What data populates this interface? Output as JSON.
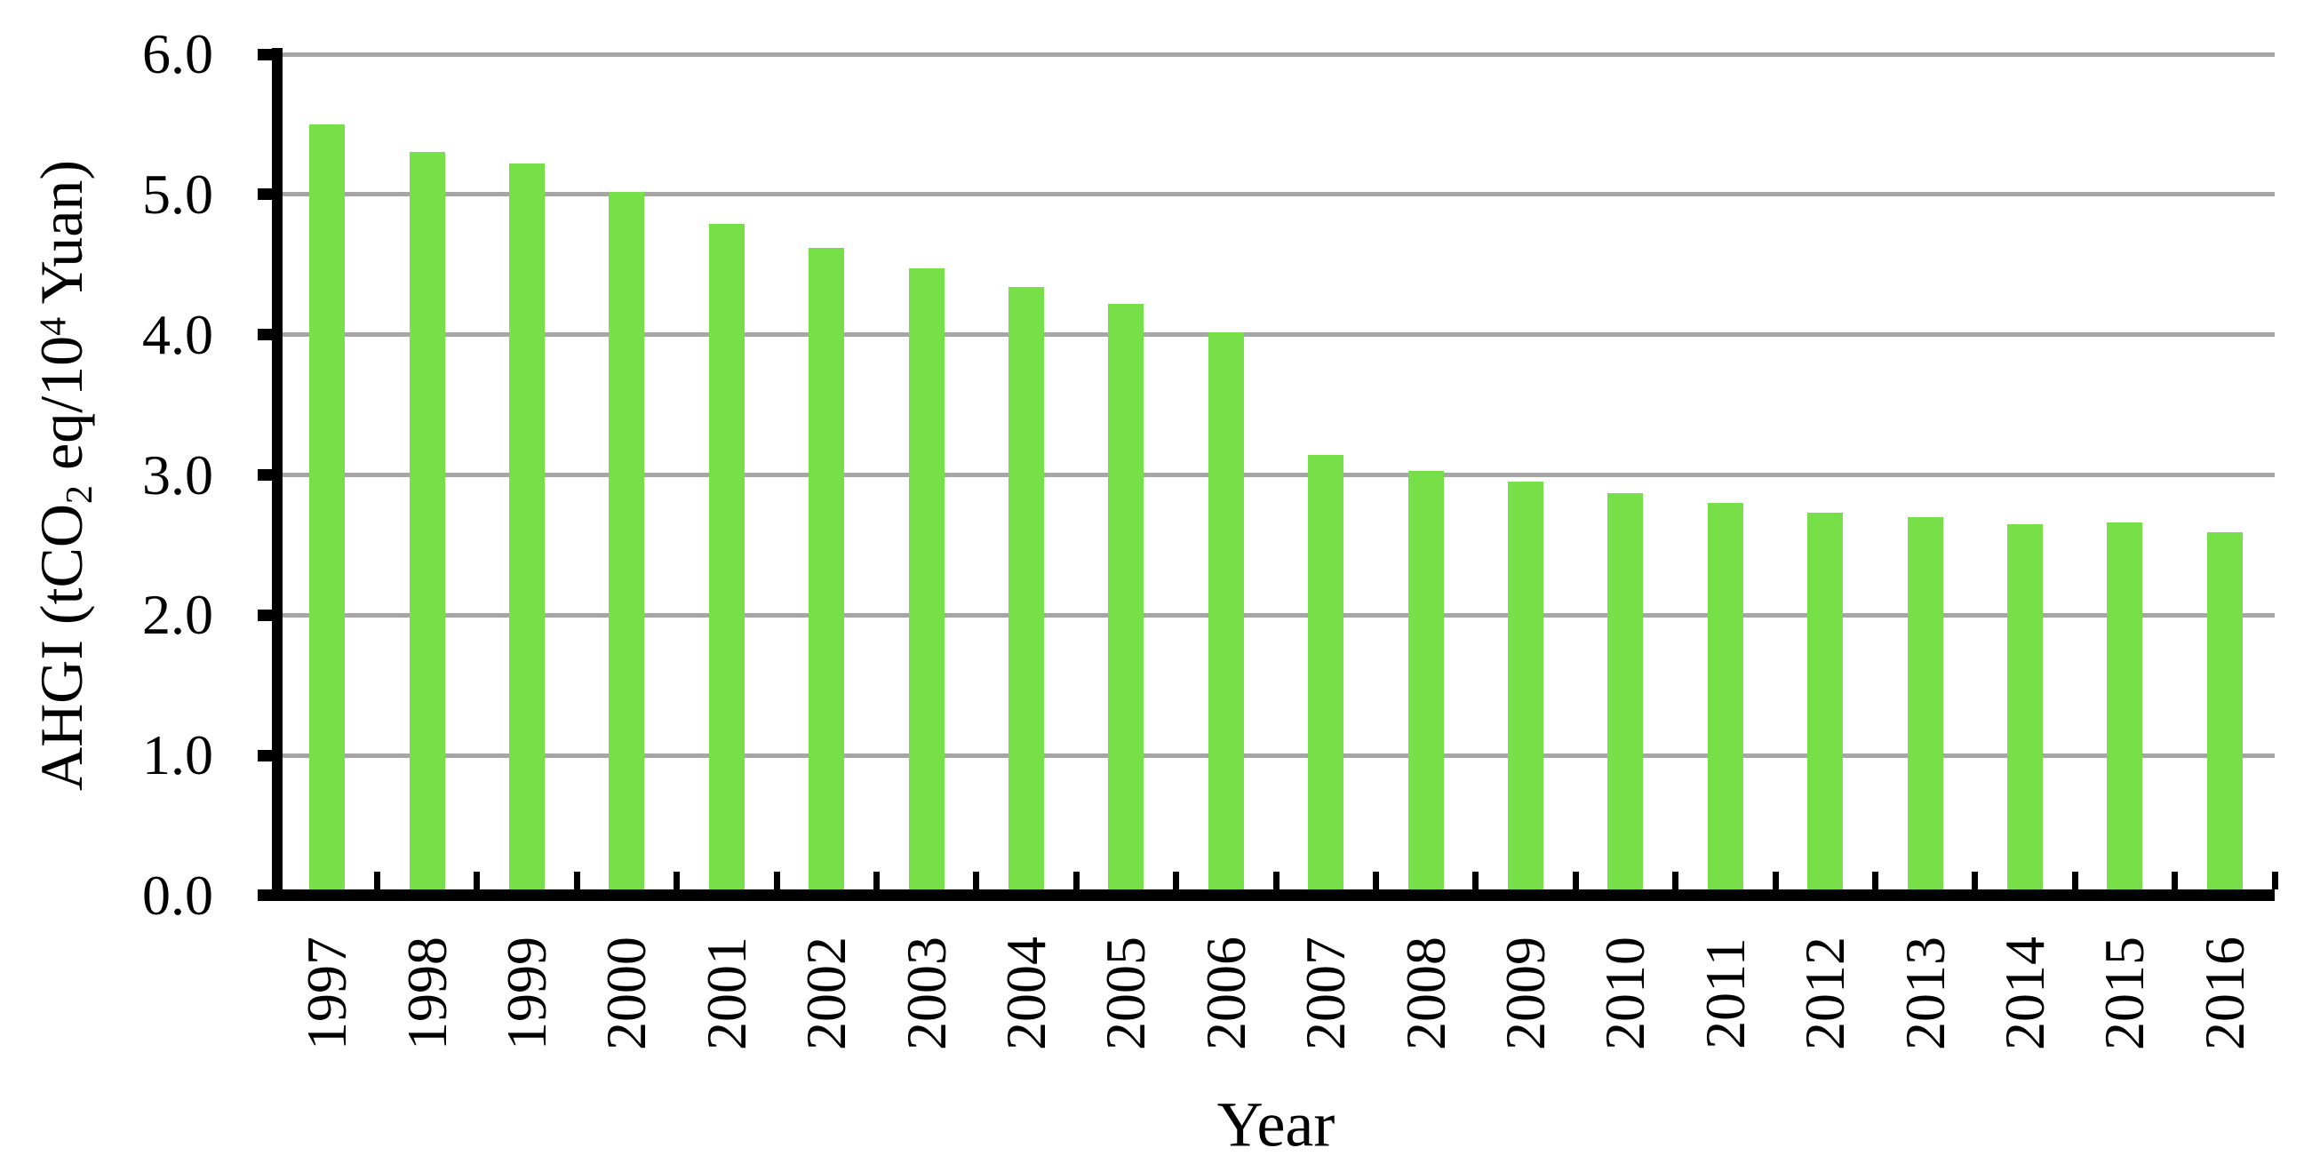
{
  "chart_data": {
    "type": "bar",
    "title": "",
    "xlabel": "Year",
    "ylabel": "AHGI (tCO2 eq/10^4 Yuan)",
    "ylabel_rich": [
      {
        "text": "AHGI (tCO",
        "script": "normal"
      },
      {
        "text": "2",
        "script": "sub"
      },
      {
        "text": " eq/10",
        "script": "normal"
      },
      {
        "text": "4",
        "script": "sup"
      },
      {
        "text": " Yuan)",
        "script": "normal"
      }
    ],
    "categories": [
      "1997",
      "1998",
      "1999",
      "2000",
      "2001",
      "2002",
      "2003",
      "2004",
      "2005",
      "2006",
      "2007",
      "2008",
      "2009",
      "2010",
      "2011",
      "2012",
      "2013",
      "2014",
      "2015",
      "2016"
    ],
    "values": [
      5.5,
      5.3,
      5.22,
      5.02,
      4.79,
      4.62,
      4.47,
      4.34,
      4.22,
      4.02,
      3.14,
      3.03,
      2.95,
      2.87,
      2.8,
      2.73,
      2.7,
      2.65,
      2.66,
      2.59
    ],
    "ylim": [
      0,
      6
    ],
    "ytick_step": 1.0,
    "ytick_labels": [
      "6.0",
      "5.0",
      "4.0",
      "3.0",
      "2.0",
      "1.0",
      "0.0"
    ],
    "grid": "horizontal",
    "legend_position": "none",
    "colors": {
      "bar": "#77E048",
      "gridline": "#A6A6A6",
      "axis": "#000000",
      "background": "#FFFFFF",
      "text": "#000000"
    }
  }
}
